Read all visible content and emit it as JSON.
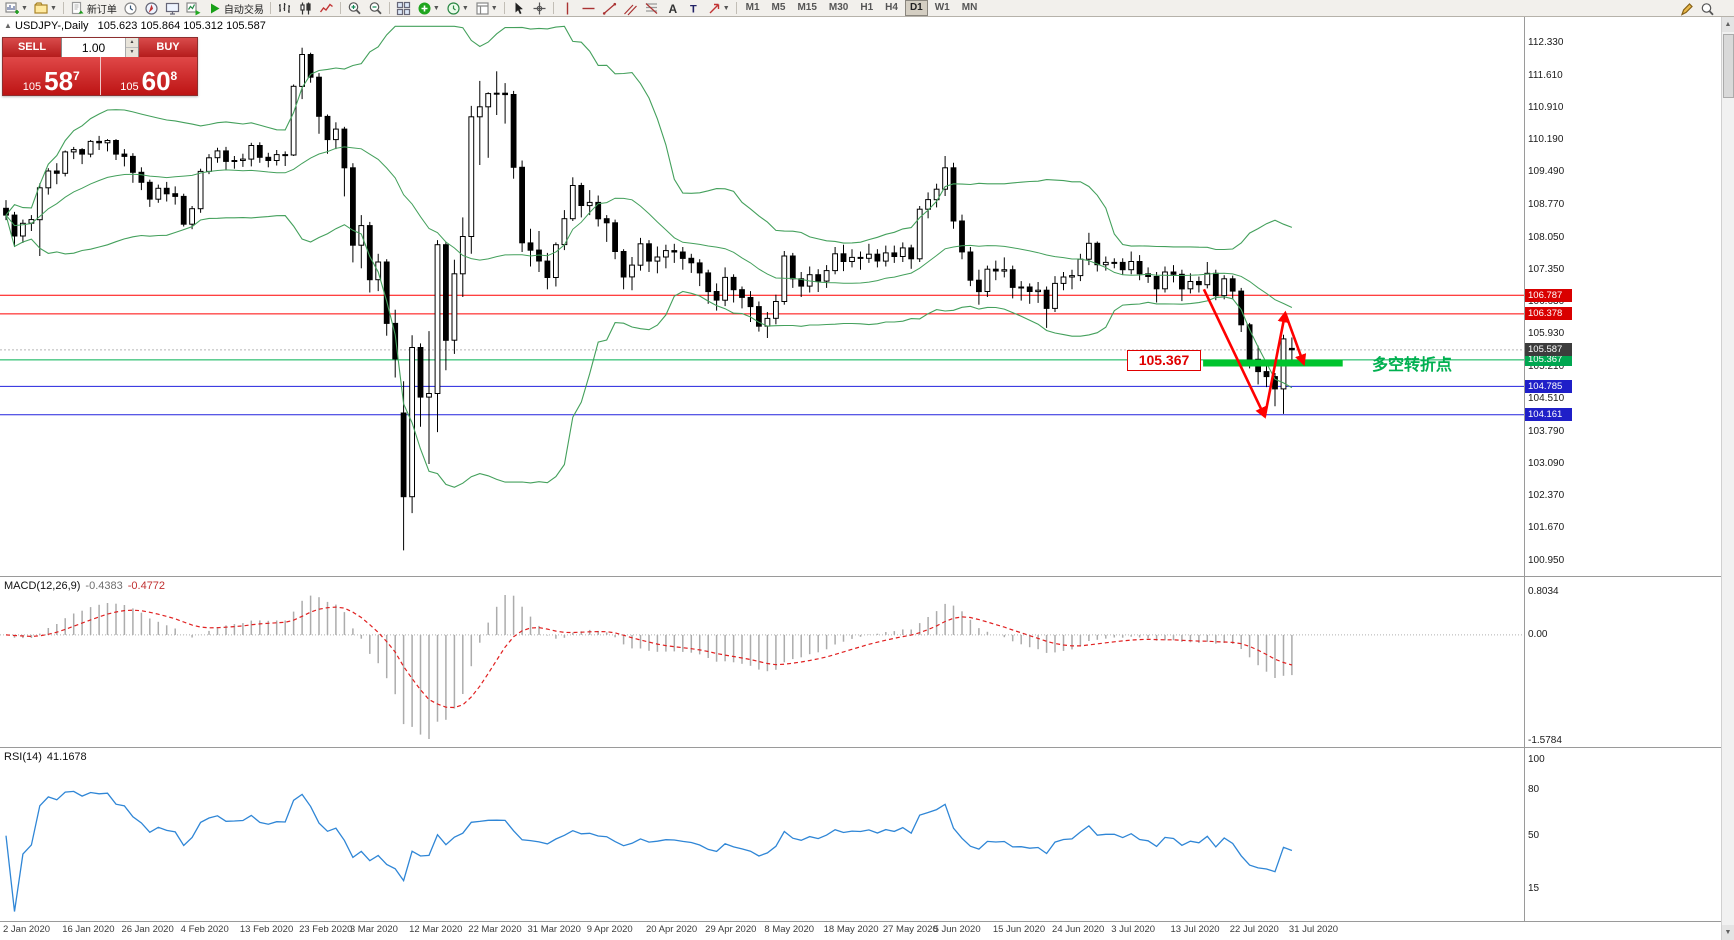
{
  "toolbar": {
    "items": [
      {
        "name": "new-chart",
        "caret": true
      },
      {
        "name": "profiles",
        "caret": true
      },
      {
        "name": "sep"
      },
      {
        "name": "new-order",
        "label": "新订单"
      },
      {
        "name": "market-watch"
      },
      {
        "name": "navigator"
      },
      {
        "name": "terminal"
      },
      {
        "name": "tester"
      },
      {
        "name": "autotrading",
        "label": "自动交易"
      },
      {
        "name": "sep"
      },
      {
        "name": "bar-chart"
      },
      {
        "name": "candle-chart"
      },
      {
        "name": "line-chart"
      },
      {
        "name": "sep"
      },
      {
        "name": "zoom-in"
      },
      {
        "name": "zoom-out"
      },
      {
        "name": "sep"
      },
      {
        "name": "tile-windows"
      },
      {
        "name": "indicators",
        "caret": true
      },
      {
        "name": "periods",
        "caret": true
      },
      {
        "name": "templates",
        "caret": true
      },
      {
        "name": "sep"
      },
      {
        "name": "cursor"
      },
      {
        "name": "crosshair"
      },
      {
        "name": "sep"
      },
      {
        "name": "vertical-line"
      },
      {
        "name": "horizontal-line"
      },
      {
        "name": "trendline"
      },
      {
        "name": "channel"
      },
      {
        "name": "fibonacci"
      },
      {
        "name": "text"
      },
      {
        "name": "text-label"
      },
      {
        "name": "arrows",
        "caret": true
      },
      {
        "name": "sep"
      }
    ],
    "timeframes": [
      "M1",
      "M5",
      "M15",
      "M30",
      "H1",
      "H4",
      "D1",
      "W1",
      "MN"
    ],
    "active_timeframe": "D1",
    "right_icons": [
      {
        "name": "pencil"
      },
      {
        "name": "magnifier"
      }
    ]
  },
  "one_click": {
    "collapse": "▲",
    "sell_label": "SELL",
    "buy_label": "BUY",
    "volume": "1.00",
    "bid": {
      "prefix": "105",
      "big": "58",
      "sup": "7"
    },
    "ask": {
      "prefix": "105",
      "big": "60",
      "sup": "8"
    }
  },
  "chart": {
    "symbol_title": "USDJPY-,Daily",
    "ohlc_text": "105.623 105.864 105.312 105.587"
  },
  "macd_header": {
    "label": "MACD(12,26,9)",
    "value1": "-0.4383",
    "value2": "-0.4772"
  },
  "rsi_header": {
    "label": "RSI(14)",
    "value": "41.1678"
  },
  "chart_data": {
    "type": "candlestick",
    "symbol": "USDJPY-",
    "timeframe": "Daily",
    "current_ohlc": {
      "open": 105.623,
      "high": 105.864,
      "low": 105.312,
      "close": 105.587
    },
    "price_scale_labels": [
      112.33,
      111.61,
      110.91,
      110.19,
      109.49,
      108.77,
      108.05,
      107.35,
      106.63,
      105.93,
      105.21,
      104.51,
      103.79,
      103.09,
      102.37,
      101.67,
      100.95
    ],
    "axis_tags": [
      {
        "price": 106.787,
        "label": "106.787",
        "color": "#D90000"
      },
      {
        "price": 106.378,
        "label": "106.378",
        "color": "#D90000"
      },
      {
        "price": 105.367,
        "label": "105.367",
        "color": "#00A650"
      },
      {
        "price": 105.587,
        "label": "105.587",
        "color": "#3C3C3C"
      },
      {
        "price": 104.785,
        "label": "104.785",
        "color": "#1F1FC8"
      },
      {
        "price": 104.161,
        "label": "104.161",
        "color": "#1F1FC8"
      }
    ],
    "hlines": [
      {
        "price": 106.787,
        "color": "#FF0000"
      },
      {
        "price": 106.378,
        "color": "#FF0000"
      },
      {
        "price": 105.367,
        "color": "#00B050"
      },
      {
        "price": 104.785,
        "color": "#2222DD"
      },
      {
        "price": 104.161,
        "color": "#2222DD"
      }
    ],
    "bid_line": 105.587,
    "thick_segment": {
      "price": 105.3,
      "from_index": 141.5,
      "to_index": 158,
      "color": "#00C42E"
    },
    "annotation": {
      "price_label": "105.367",
      "text": "多空转折点",
      "text_color": "#00B050",
      "label_color": "#E00000"
    },
    "arrows": {
      "color": "#FF0000",
      "points": [
        [
          141.6,
          106.92
        ],
        [
          148.8,
          104.12
        ],
        [
          151.2,
          106.4
        ],
        [
          153.4,
          105.28
        ]
      ]
    },
    "bollinger": {
      "period": 20,
      "deviation": 2,
      "color": "#44A05C"
    },
    "macd": {
      "fast": 12,
      "slow": 26,
      "signal": 9,
      "bar_color": "#ACACAC",
      "signal_color": "#E02020",
      "scale_labels": [
        "0.8034",
        "0.00",
        "-1.5784"
      ]
    },
    "rsi": {
      "period": 14,
      "color": "#2F86D6",
      "scale_labels": [
        100,
        80,
        50,
        15
      ]
    },
    "date_labels": [
      "2 Jan 2020",
      "16 Jan 2020",
      "26 Jan 2020",
      "4 Feb 2020",
      "13 Feb 2020",
      "23 Feb 2020",
      "3 Mar 2020",
      "12 Mar 2020",
      "22 Mar 2020",
      "31 Mar 2020",
      "9 Apr 2020",
      "20 Apr 2020",
      "29 Apr 2020",
      "8 May 2020",
      "18 May 2020",
      "27 May 2020",
      "5 Jun 2020",
      "15 Jun 2020",
      "24 Jun 2020",
      "3 Jul 2020",
      "13 Jul 2020",
      "22 Jul 2020",
      "31 Jul 2020"
    ],
    "candles": [
      [
        108.7,
        108.88,
        108.44,
        108.55
      ],
      [
        108.55,
        108.62,
        107.85,
        108.09
      ],
      [
        108.09,
        108.45,
        107.94,
        108.37
      ],
      [
        108.37,
        108.55,
        108.2,
        108.45
      ],
      [
        108.45,
        109.25,
        107.65,
        109.15
      ],
      [
        109.15,
        109.58,
        109.0,
        109.52
      ],
      [
        109.52,
        109.69,
        109.23,
        109.47
      ],
      [
        109.47,
        109.97,
        109.4,
        109.94
      ],
      [
        109.94,
        110.05,
        109.78,
        109.99
      ],
      [
        109.99,
        110.02,
        109.67,
        109.89
      ],
      [
        109.89,
        110.2,
        109.82,
        110.17
      ],
      [
        110.17,
        110.29,
        109.98,
        110.14
      ],
      [
        110.14,
        110.22,
        109.95,
        110.19
      ],
      [
        110.19,
        110.22,
        109.76,
        109.89
      ],
      [
        109.89,
        110.0,
        109.62,
        109.84
      ],
      [
        109.84,
        109.91,
        109.26,
        109.49
      ],
      [
        109.49,
        109.6,
        109.1,
        109.27
      ],
      [
        109.27,
        109.33,
        108.73,
        108.9
      ],
      [
        108.9,
        109.22,
        108.82,
        109.14
      ],
      [
        109.14,
        109.28,
        108.85,
        109.02
      ],
      [
        109.02,
        109.18,
        108.78,
        108.96
      ],
      [
        108.96,
        109.02,
        108.3,
        108.35
      ],
      [
        108.35,
        108.75,
        108.24,
        108.69
      ],
      [
        108.69,
        109.57,
        108.6,
        109.51
      ],
      [
        109.51,
        109.89,
        109.45,
        109.81
      ],
      [
        109.81,
        110.03,
        109.7,
        109.96
      ],
      [
        109.96,
        110.05,
        109.55,
        109.73
      ],
      [
        109.73,
        109.85,
        109.57,
        109.75
      ],
      [
        109.75,
        109.9,
        109.61,
        109.78
      ],
      [
        109.78,
        110.14,
        109.62,
        110.08
      ],
      [
        110.08,
        110.15,
        109.7,
        109.82
      ],
      [
        109.82,
        109.92,
        109.6,
        109.75
      ],
      [
        109.75,
        109.98,
        109.64,
        109.88
      ],
      [
        109.88,
        109.95,
        109.63,
        109.87
      ],
      [
        109.87,
        111.42,
        109.85,
        111.38
      ],
      [
        111.38,
        112.23,
        111.1,
        112.08
      ],
      [
        112.08,
        112.12,
        111.46,
        111.58
      ],
      [
        111.58,
        111.67,
        110.34,
        110.72
      ],
      [
        110.72,
        110.76,
        109.9,
        110.21
      ],
      [
        110.21,
        110.59,
        110.0,
        110.44
      ],
      [
        110.44,
        110.49,
        108.96,
        109.59
      ],
      [
        109.59,
        109.69,
        107.51,
        107.89
      ],
      [
        107.89,
        108.55,
        107.38,
        108.32
      ],
      [
        108.32,
        108.4,
        106.85,
        107.13
      ],
      [
        107.13,
        107.7,
        106.88,
        107.52
      ],
      [
        107.52,
        107.58,
        105.9,
        106.17
      ],
      [
        106.17,
        106.47,
        104.98,
        105.39
      ],
      [
        104.2,
        104.9,
        101.18,
        102.36
      ],
      [
        102.36,
        105.91,
        102.0,
        105.64
      ],
      [
        105.64,
        105.73,
        103.9,
        104.55
      ],
      [
        104.55,
        106.0,
        103.08,
        104.63
      ],
      [
        104.63,
        108.0,
        103.78,
        107.9
      ],
      [
        107.9,
        107.96,
        105.14,
        105.8
      ],
      [
        105.8,
        107.57,
        105.5,
        107.26
      ],
      [
        107.26,
        108.5,
        106.75,
        108.08
      ],
      [
        108.08,
        110.95,
        107.7,
        110.71
      ],
      [
        110.71,
        111.5,
        109.65,
        110.93
      ],
      [
        110.93,
        111.25,
        109.81,
        111.22
      ],
      [
        111.22,
        111.71,
        110.75,
        111.23
      ],
      [
        111.23,
        111.45,
        110.56,
        111.2
      ],
      [
        111.2,
        111.28,
        109.35,
        109.6
      ],
      [
        109.6,
        109.75,
        107.74,
        107.94
      ],
      [
        107.94,
        108.25,
        107.42,
        107.78
      ],
      [
        107.78,
        108.2,
        107.3,
        107.54
      ],
      [
        107.54,
        107.72,
        106.92,
        107.18
      ],
      [
        107.18,
        107.95,
        106.98,
        107.9
      ],
      [
        107.9,
        108.66,
        107.78,
        108.47
      ],
      [
        108.47,
        109.38,
        108.42,
        109.2
      ],
      [
        109.2,
        109.26,
        108.5,
        108.76
      ],
      [
        108.76,
        109.1,
        108.55,
        108.83
      ],
      [
        108.83,
        108.98,
        108.3,
        108.47
      ],
      [
        108.47,
        108.55,
        107.96,
        108.38
      ],
      [
        108.38,
        108.45,
        107.58,
        107.75
      ],
      [
        107.75,
        107.8,
        106.92,
        107.19
      ],
      [
        107.19,
        107.63,
        106.9,
        107.45
      ],
      [
        107.45,
        108.05,
        107.33,
        107.92
      ],
      [
        107.92,
        108.0,
        107.3,
        107.54
      ],
      [
        107.54,
        107.86,
        107.27,
        107.63
      ],
      [
        107.63,
        107.9,
        107.38,
        107.77
      ],
      [
        107.77,
        107.92,
        107.5,
        107.74
      ],
      [
        107.74,
        107.85,
        107.35,
        107.6
      ],
      [
        107.6,
        107.7,
        107.28,
        107.5
      ],
      [
        107.5,
        107.58,
        106.99,
        107.28
      ],
      [
        107.28,
        107.35,
        106.6,
        106.87
      ],
      [
        106.87,
        107.05,
        106.45,
        106.68
      ],
      [
        106.68,
        107.4,
        106.55,
        107.18
      ],
      [
        107.18,
        107.25,
        106.63,
        106.91
      ],
      [
        106.91,
        106.98,
        106.5,
        106.74
      ],
      [
        106.74,
        106.88,
        106.2,
        106.54
      ],
      [
        106.54,
        106.65,
        105.99,
        106.11
      ],
      [
        106.11,
        106.42,
        105.85,
        106.28
      ],
      [
        106.28,
        106.8,
        106.15,
        106.65
      ],
      [
        106.65,
        107.76,
        106.58,
        107.65
      ],
      [
        107.65,
        107.72,
        106.95,
        107.15
      ],
      [
        107.15,
        107.3,
        106.75,
        106.99
      ],
      [
        106.99,
        107.42,
        106.85,
        107.24
      ],
      [
        107.24,
        107.36,
        106.86,
        107.1
      ],
      [
        107.1,
        107.45,
        106.95,
        107.33
      ],
      [
        107.33,
        107.85,
        107.25,
        107.7
      ],
      [
        107.7,
        107.9,
        107.32,
        107.53
      ],
      [
        107.53,
        107.8,
        107.4,
        107.62
      ],
      [
        107.62,
        107.75,
        107.35,
        107.6
      ],
      [
        107.6,
        107.92,
        107.5,
        107.69
      ],
      [
        107.69,
        107.8,
        107.4,
        107.54
      ],
      [
        107.54,
        107.88,
        107.42,
        107.72
      ],
      [
        107.72,
        107.88,
        107.5,
        107.64
      ],
      [
        107.64,
        107.95,
        107.52,
        107.83
      ],
      [
        107.83,
        107.9,
        107.37,
        107.59
      ],
      [
        107.59,
        108.75,
        107.52,
        108.68
      ],
      [
        108.68,
        109.05,
        108.48,
        108.89
      ],
      [
        108.89,
        109.24,
        108.72,
        109.12
      ],
      [
        109.12,
        109.85,
        108.97,
        109.59
      ],
      [
        109.59,
        109.7,
        108.25,
        108.42
      ],
      [
        108.42,
        108.56,
        107.58,
        107.74
      ],
      [
        107.74,
        107.85,
        106.99,
        107.12
      ],
      [
        107.12,
        107.35,
        106.58,
        106.87
      ],
      [
        106.87,
        107.44,
        106.75,
        107.36
      ],
      [
        107.36,
        107.55,
        107.12,
        107.32
      ],
      [
        107.32,
        107.62,
        107.18,
        107.35
      ],
      [
        107.35,
        107.44,
        106.72,
        106.96
      ],
      [
        106.96,
        107.1,
        106.67,
        106.97
      ],
      [
        106.97,
        107.05,
        106.6,
        106.87
      ],
      [
        106.87,
        107.08,
        106.62,
        106.9
      ],
      [
        106.9,
        106.98,
        106.07,
        106.5
      ],
      [
        106.5,
        107.21,
        106.42,
        107.05
      ],
      [
        107.05,
        107.3,
        106.9,
        107.19
      ],
      [
        107.19,
        107.35,
        106.92,
        107.22
      ],
      [
        107.22,
        107.7,
        107.1,
        107.58
      ],
      [
        107.58,
        108.16,
        107.45,
        107.93
      ],
      [
        107.93,
        107.97,
        107.31,
        107.46
      ],
      [
        107.46,
        107.64,
        107.33,
        107.51
      ],
      [
        107.51,
        107.6,
        107.38,
        107.51
      ],
      [
        107.51,
        107.6,
        107.24,
        107.35
      ],
      [
        107.35,
        107.75,
        107.25,
        107.53
      ],
      [
        107.53,
        107.67,
        107.12,
        107.26
      ],
      [
        107.26,
        107.4,
        107.06,
        107.2
      ],
      [
        107.2,
        107.3,
        106.63,
        106.93
      ],
      [
        106.93,
        107.42,
        106.85,
        107.3
      ],
      [
        107.3,
        107.45,
        107.07,
        107.25
      ],
      [
        107.25,
        107.35,
        106.66,
        106.93
      ],
      [
        106.93,
        107.27,
        106.83,
        107.09
      ],
      [
        107.09,
        107.2,
        106.85,
        107.02
      ],
      [
        107.02,
        107.52,
        106.94,
        107.27
      ],
      [
        107.27,
        107.35,
        106.68,
        106.78
      ],
      [
        106.78,
        107.23,
        106.7,
        107.15
      ],
      [
        107.15,
        107.22,
        106.7,
        106.88
      ],
      [
        106.88,
        106.95,
        105.98,
        106.14
      ],
      [
        106.14,
        106.18,
        105.18,
        105.38
      ],
      [
        105.38,
        105.68,
        104.83,
        105.11
      ],
      [
        105.11,
        105.3,
        104.77,
        105.0
      ],
      [
        105.0,
        105.08,
        104.35,
        104.73
      ],
      [
        104.73,
        105.92,
        104.18,
        105.83
      ],
      [
        105.62,
        105.86,
        105.31,
        105.59
      ]
    ]
  }
}
